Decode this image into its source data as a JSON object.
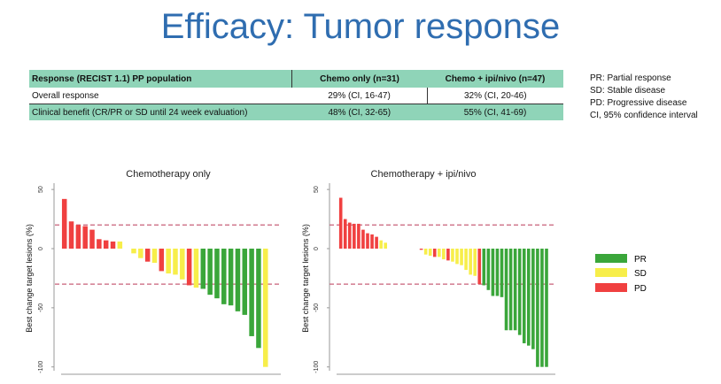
{
  "title": "Efficacy: Tumor response",
  "table": {
    "headers": [
      "Response (RECIST 1.1) PP population",
      "Chemo only (n=31)",
      "Chemo + ipi/nivo  (n=47)"
    ],
    "rows": [
      [
        "Overall response",
        "29% (CI, 16-47)",
        "32% (CI, 20-46)"
      ],
      [
        "Clinical benefit (CR/PR or SD until 24 week evaluation)",
        "48% (CI, 32-65)",
        "55% (CI, 41-69)"
      ]
    ]
  },
  "abbreviations": [
    "PR: Partial response",
    "SD: Stable disease",
    "PD: Progressive disease",
    "CI, 95% confidence interval"
  ],
  "colors": {
    "PR": "#3aa63a",
    "SD": "#f7ee4a",
    "PD": "#f04040",
    "threshold": "#c8607a"
  },
  "chart_data": [
    {
      "type": "bar",
      "title": "Chemotherapy only",
      "ylabel": "Best change target lesions (%)",
      "ylim": [
        -100,
        50
      ],
      "yticks": [
        "50",
        "0",
        "-50",
        "-100"
      ],
      "reference_lines": [
        20,
        -30
      ],
      "legend": [
        "PR",
        "SD",
        "PD"
      ],
      "legend_position": "right",
      "values": [
        42,
        23,
        20,
        19,
        16,
        8,
        7,
        6,
        6,
        0,
        -4,
        -8,
        -11,
        -12,
        -19,
        -21,
        -22,
        -26,
        -31,
        -33,
        -34,
        -39,
        -42,
        -47,
        -48,
        -53,
        -56,
        -74,
        -84,
        -100
      ],
      "response": [
        "PD",
        "PD",
        "PD",
        "PD",
        "PD",
        "PD",
        "PD",
        "PD",
        "SD",
        "",
        "SD",
        "SD",
        "PD",
        "SD",
        "PD",
        "SD",
        "SD",
        "SD",
        "PD",
        "SD",
        "PR",
        "PR",
        "PR",
        "PR",
        "PR",
        "PR",
        "PR",
        "PR",
        "PR",
        "SD"
      ]
    },
    {
      "type": "bar",
      "title": "Chemotherapy + ipi/nivo",
      "ylabel": "Best change target lesions (%)",
      "ylim": [
        -100,
        50
      ],
      "yticks": [
        "50",
        "0",
        "-50",
        "-100"
      ],
      "reference_lines": [
        20,
        -30
      ],
      "values": [
        43,
        25,
        22,
        21,
        21,
        16,
        13,
        12,
        10,
        7,
        5,
        0,
        0,
        0,
        0,
        0,
        0,
        0,
        -1,
        -5,
        -6,
        -7,
        -7,
        -9,
        -10,
        -11,
        -13,
        -14,
        -18,
        -22,
        -23,
        -30,
        -31,
        -35,
        -40,
        -40,
        -41,
        -69,
        -69,
        -69,
        -73,
        -80,
        -82,
        -85,
        -100,
        -100,
        -100
      ],
      "response": [
        "PD",
        "PD",
        "PD",
        "PD",
        "PD",
        "PD",
        "PD",
        "PD",
        "PD",
        "SD",
        "SD",
        "",
        "",
        "",
        "",
        "",
        "",
        "",
        "PD",
        "SD",
        "SD",
        "PD",
        "SD",
        "SD",
        "PD",
        "SD",
        "SD",
        "SD",
        "SD",
        "SD",
        "SD",
        "PD",
        "PR",
        "PR",
        "PR",
        "PR",
        "PR",
        "PR",
        "PR",
        "PR",
        "PR",
        "PR",
        "PR",
        "PR",
        "PR",
        "PR",
        "PR"
      ]
    }
  ]
}
